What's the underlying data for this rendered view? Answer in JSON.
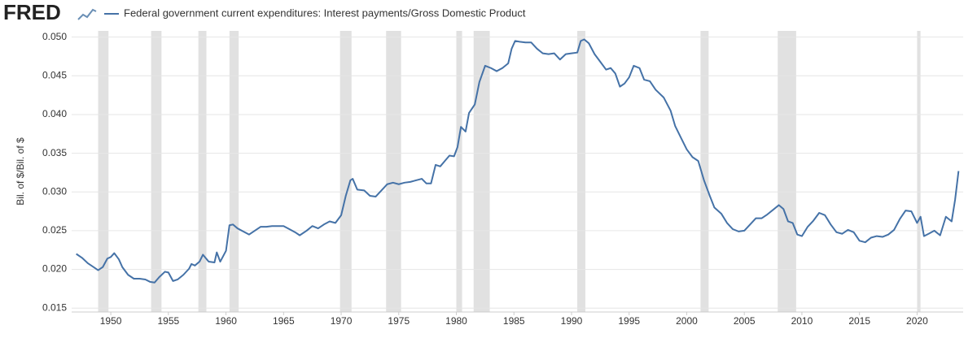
{
  "chart_data": {
    "type": "line",
    "logo": "FRED",
    "ylabel": "Bil. of $/Bil. of $",
    "x": [
      1947,
      1947.5,
      1948,
      1948.5,
      1948.9,
      1949.3,
      1949.7,
      1950,
      1950.3,
      1950.7,
      1951,
      1951.5,
      1952,
      1952.5,
      1953,
      1953.4,
      1953.8,
      1954.2,
      1954.7,
      1955,
      1955.4,
      1955.8,
      1956.3,
      1956.8,
      1957,
      1957.3,
      1957.7,
      1958,
      1958.5,
      1959,
      1959.2,
      1959.5,
      1960,
      1960.3,
      1960.6,
      1961,
      1961.5,
      1962,
      1962.5,
      1963,
      1963.5,
      1964,
      1965,
      1965.5,
      1966,
      1966.4,
      1967,
      1967.5,
      1968,
      1968.5,
      1969,
      1969.5,
      1970,
      1970.4,
      1970.8,
      1971,
      1971.4,
      1972,
      1972.5,
      1973,
      1973.5,
      1974,
      1974.5,
      1975,
      1975.5,
      1976,
      1976.5,
      1977,
      1977.4,
      1977.8,
      1978.2,
      1978.6,
      1979,
      1979.4,
      1979.8,
      1980.1,
      1980.4,
      1980.8,
      1981.1,
      1981.6,
      1982,
      1982.5,
      1983,
      1983.5,
      1984,
      1984.5,
      1984.8,
      1985.1,
      1985.5,
      1986,
      1986.5,
      1987,
      1987.5,
      1988,
      1988.5,
      1989,
      1989.5,
      1990,
      1990.5,
      1990.8,
      1991.1,
      1991.5,
      1992,
      1992.5,
      1993,
      1993.4,
      1993.8,
      1994.2,
      1994.6,
      1995,
      1995.4,
      1995.9,
      1996.3,
      1996.8,
      1997.3,
      1998,
      1998.6,
      1999,
      1999.5,
      2000,
      2000.5,
      2001,
      2001.5,
      2002,
      2002.4,
      2003,
      2003.5,
      2004,
      2004.5,
      2005,
      2005.5,
      2006,
      2006.5,
      2007,
      2007.5,
      2008,
      2008.4,
      2008.8,
      2009.2,
      2009.6,
      2010,
      2010.5,
      2011,
      2011.5,
      2012,
      2012.5,
      2013,
      2013.5,
      2014,
      2014.5,
      2015,
      2015.5,
      2016,
      2016.5,
      2017,
      2017.5,
      2018,
      2018.5,
      2019,
      2019.5,
      2020,
      2020.3,
      2020.6,
      2021,
      2021.5,
      2022,
      2022.5,
      2023,
      2023.3,
      2023.6
    ],
    "series": [
      {
        "name": "Federal government current expenditures: Interest payments/Gross Domestic Product",
        "color": "#4572a7",
        "values": [
          0.022,
          0.0215,
          0.0208,
          0.0203,
          0.0199,
          0.0203,
          0.0214,
          0.0216,
          0.0221,
          0.0213,
          0.0203,
          0.0193,
          0.0188,
          0.0188,
          0.0187,
          0.0184,
          0.0183,
          0.019,
          0.0197,
          0.0196,
          0.0185,
          0.0187,
          0.0193,
          0.0201,
          0.0207,
          0.0205,
          0.021,
          0.0219,
          0.021,
          0.0209,
          0.0222,
          0.021,
          0.0224,
          0.0257,
          0.0258,
          0.0253,
          0.0249,
          0.0245,
          0.025,
          0.0255,
          0.0255,
          0.0256,
          0.0256,
          0.0252,
          0.0248,
          0.0244,
          0.025,
          0.0256,
          0.0253,
          0.0258,
          0.0262,
          0.026,
          0.027,
          0.0295,
          0.0315,
          0.0317,
          0.0303,
          0.0302,
          0.0295,
          0.0294,
          0.0302,
          0.031,
          0.0312,
          0.031,
          0.0312,
          0.0313,
          0.0315,
          0.0317,
          0.0311,
          0.0311,
          0.0335,
          0.0333,
          0.034,
          0.0347,
          0.0346,
          0.0358,
          0.0384,
          0.0378,
          0.0402,
          0.0413,
          0.0442,
          0.0463,
          0.046,
          0.0456,
          0.046,
          0.0466,
          0.0485,
          0.0495,
          0.0494,
          0.0493,
          0.0493,
          0.0485,
          0.0479,
          0.0478,
          0.0479,
          0.0471,
          0.0478,
          0.0479,
          0.048,
          0.0495,
          0.0497,
          0.0492,
          0.0478,
          0.0468,
          0.0458,
          0.046,
          0.0453,
          0.0436,
          0.044,
          0.0448,
          0.0463,
          0.046,
          0.0445,
          0.0443,
          0.0432,
          0.0422,
          0.0405,
          0.0385,
          0.037,
          0.0355,
          0.0345,
          0.034,
          0.0315,
          0.0295,
          0.028,
          0.0272,
          0.026,
          0.0252,
          0.0249,
          0.025,
          0.0258,
          0.0266,
          0.0266,
          0.0271,
          0.0277,
          0.0283,
          0.0278,
          0.0262,
          0.026,
          0.0245,
          0.0243,
          0.0255,
          0.0263,
          0.0273,
          0.027,
          0.0258,
          0.0248,
          0.0246,
          0.0251,
          0.0248,
          0.0237,
          0.0235,
          0.0241,
          0.0243,
          0.0242,
          0.0245,
          0.0251,
          0.0265,
          0.0276,
          0.0275,
          0.026,
          0.0268,
          0.0243,
          0.0246,
          0.025,
          0.0244,
          0.0268,
          0.0262,
          0.029,
          0.0327
        ]
      }
    ],
    "recessions": [
      [
        1948.9,
        1949.8
      ],
      [
        1953.5,
        1954.4
      ],
      [
        1957.6,
        1958.3
      ],
      [
        1960.3,
        1961.1
      ],
      [
        1969.9,
        1970.9
      ],
      [
        1973.9,
        1975.2
      ],
      [
        1980,
        1980.5
      ],
      [
        1981.5,
        1982.9
      ],
      [
        1990.5,
        1991.2
      ],
      [
        2001.2,
        2001.9
      ],
      [
        2007.9,
        2009.5
      ],
      [
        2020,
        2020.3
      ]
    ],
    "recession_color": "#e1e1e1",
    "xlim": [
      1946.6,
      2024
    ],
    "xticks": [
      1950,
      1955,
      1960,
      1965,
      1970,
      1975,
      1980,
      1985,
      1990,
      1995,
      2000,
      2005,
      2010,
      2015,
      2020
    ],
    "ylim": [
      0.0145,
      0.0508
    ],
    "yticks": [
      0.015,
      {
        "value": 0.02,
        "label": "0.020"
      },
      0.025,
      {
        "value": 0.03,
        "label": "0.030"
      },
      0.035,
      {
        "value": 0.04,
        "label": "0.040"
      },
      0.045,
      {
        "value": 0.05,
        "label": "0.050"
      }
    ],
    "grid": true
  }
}
